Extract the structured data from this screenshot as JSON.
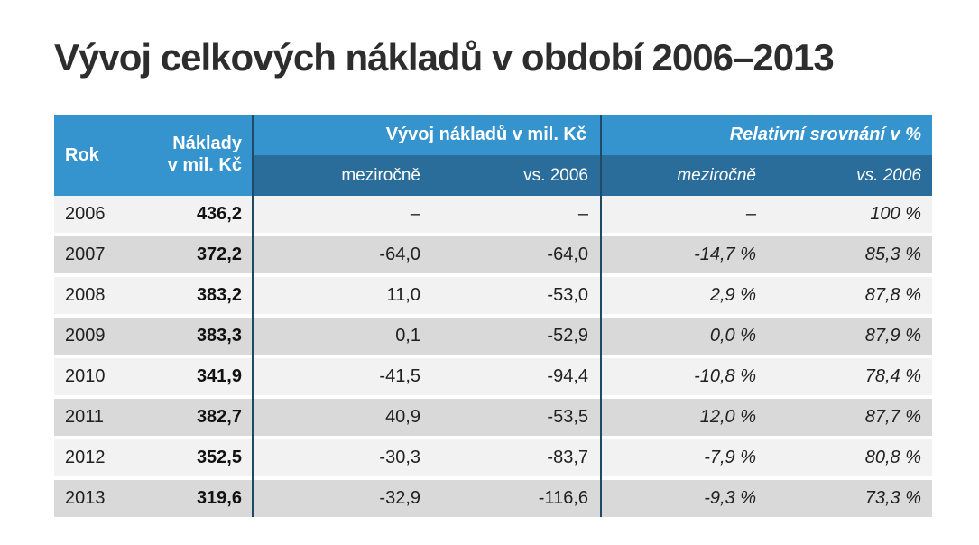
{
  "title": "Vývoj celkových nákladů v období 2006–2013",
  "colors": {
    "background": "#ffffff",
    "header_blue": "#3593ce",
    "subheader_blue": "#2a6d9a",
    "row_light": "#f2f2f2",
    "row_dark": "#d9d9d9",
    "divider_navy": "#1c4a67",
    "title_text": "#2d2d2d",
    "body_text": "#1f1f1f",
    "header_text": "#ffffff"
  },
  "table": {
    "header": {
      "rok": "Rok",
      "naklady_line1": "Náklady",
      "naklady_line2": "v mil. Kč",
      "group_vyvoj": "Vývoj nákladů v mil. Kč",
      "group_relativni": "Relativní srovnání v %",
      "sub_mezirocne_abs": "meziročně",
      "sub_vs2006_abs": "vs. 2006",
      "sub_mezirocne_rel": "meziročně",
      "sub_vs2006_rel": "vs. 2006"
    },
    "rows": [
      {
        "rok": "2006",
        "naklady": "436,2",
        "vyvoj_mezirocne": "–",
        "vyvoj_vs2006": "–",
        "rel_mezirocne": "–",
        "rel_vs2006": "100 %"
      },
      {
        "rok": "2007",
        "naklady": "372,2",
        "vyvoj_mezirocne": "-64,0",
        "vyvoj_vs2006": "-64,0",
        "rel_mezirocne": "-14,7 %",
        "rel_vs2006": "85,3 %"
      },
      {
        "rok": "2008",
        "naklady": "383,2",
        "vyvoj_mezirocne": "11,0",
        "vyvoj_vs2006": "-53,0",
        "rel_mezirocne": "2,9 %",
        "rel_vs2006": "87,8 %"
      },
      {
        "rok": "2009",
        "naklady": "383,3",
        "vyvoj_mezirocne": "0,1",
        "vyvoj_vs2006": "-52,9",
        "rel_mezirocne": "0,0 %",
        "rel_vs2006": "87,9 %"
      },
      {
        "rok": "2010",
        "naklady": "341,9",
        "vyvoj_mezirocne": "-41,5",
        "vyvoj_vs2006": "-94,4",
        "rel_mezirocne": "-10,8 %",
        "rel_vs2006": "78,4 %"
      },
      {
        "rok": "2011",
        "naklady": "382,7",
        "vyvoj_mezirocne": "40,9",
        "vyvoj_vs2006": "-53,5",
        "rel_mezirocne": "12,0 %",
        "rel_vs2006": "87,7 %"
      },
      {
        "rok": "2012",
        "naklady": "352,5",
        "vyvoj_mezirocne": "-30,3",
        "vyvoj_vs2006": "-83,7",
        "rel_mezirocne": "-7,9 %",
        "rel_vs2006": "80,8 %"
      },
      {
        "rok": "2013",
        "naklady": "319,6",
        "vyvoj_mezirocne": "-32,9",
        "vyvoj_vs2006": "-116,6",
        "rel_mezirocne": "-9,3 %",
        "rel_vs2006": "73,3 %"
      }
    ]
  },
  "chart_data": {
    "type": "table",
    "title": "Vývoj celkových nákladů v období 2006–2013",
    "column_groups": [
      "",
      "",
      "Vývoj nákladů v mil. Kč",
      "Vývoj nákladů v mil. Kč",
      "Relativní srovnání v %",
      "Relativní srovnání v %"
    ],
    "columns": [
      "Rok",
      "Náklady v mil. Kč",
      "meziročně",
      "vs. 2006",
      "meziročně",
      "vs. 2006"
    ],
    "rows": [
      [
        2006,
        436.2,
        null,
        null,
        null,
        100.0
      ],
      [
        2007,
        372.2,
        -64.0,
        -64.0,
        -14.7,
        85.3
      ],
      [
        2008,
        383.2,
        11.0,
        -53.0,
        2.9,
        87.8
      ],
      [
        2009,
        383.3,
        0.1,
        -52.9,
        0.0,
        87.9
      ],
      [
        2010,
        341.9,
        -41.5,
        -94.4,
        -10.8,
        78.4
      ],
      [
        2011,
        382.7,
        40.9,
        -53.5,
        12.0,
        87.7
      ],
      [
        2012,
        352.5,
        -30.3,
        -83.7,
        -7.9,
        80.8
      ],
      [
        2013,
        319.6,
        -32.9,
        -116.6,
        -9.3,
        73.3
      ]
    ]
  }
}
